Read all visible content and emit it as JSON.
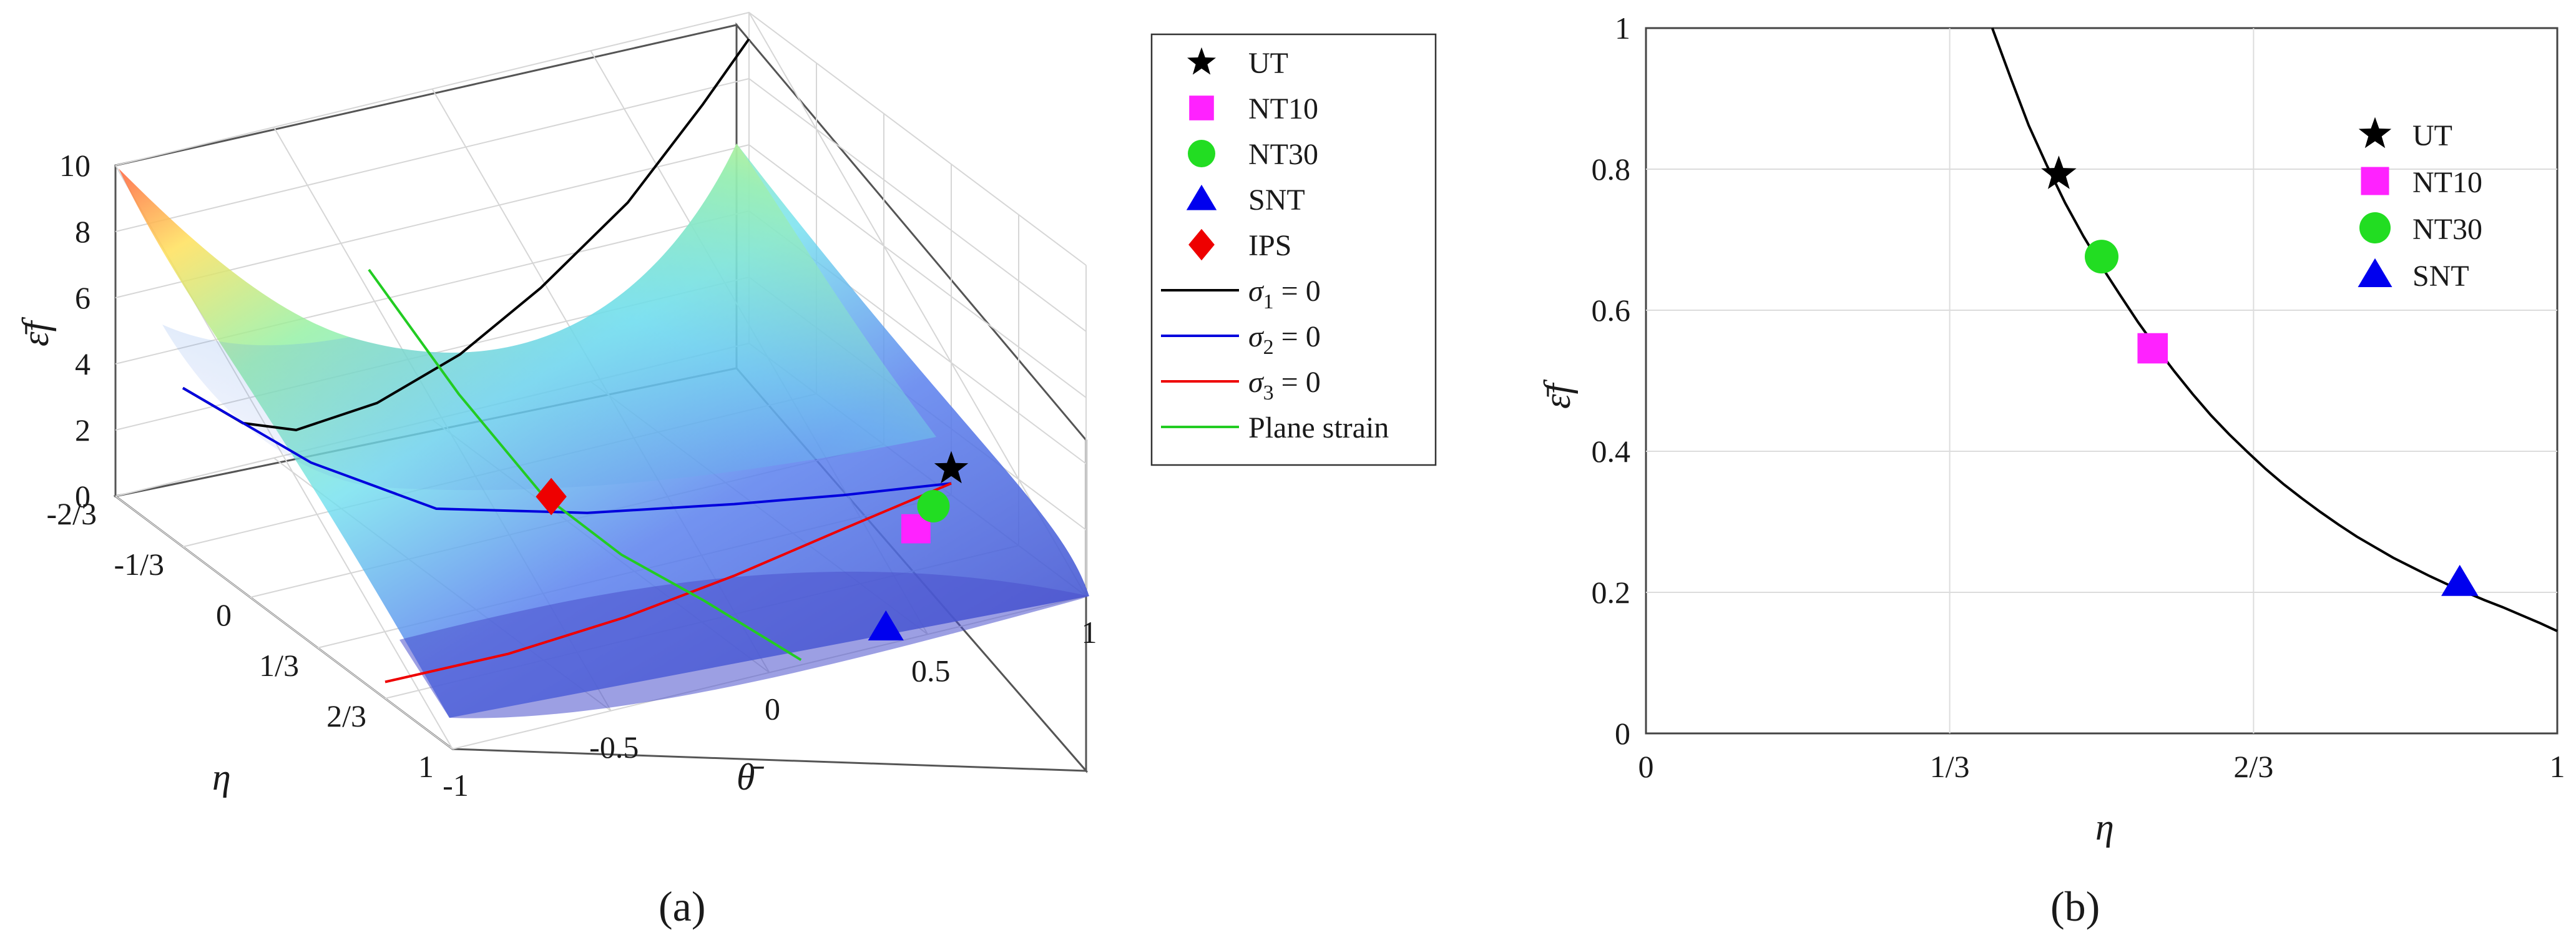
{
  "chart_data": [
    {
      "id": "a",
      "type": "surface3d",
      "panel_label": "(a)",
      "xlabel": "θ̄",
      "ylabel": "η",
      "zlabel": "ε̄f",
      "xlim": [
        -1,
        1
      ],
      "ylim": [
        -0.6667,
        1
      ],
      "zlim": [
        0,
        10
      ],
      "x_ticks": [
        -1,
        -0.5,
        0,
        0.5,
        1
      ],
      "x_tick_labels": [
        "-1",
        "-0.5",
        "0",
        "0.5",
        "1"
      ],
      "y_ticks": [
        -0.6667,
        -0.3333,
        0,
        0.3333,
        0.6667,
        1
      ],
      "y_tick_labels": [
        "-2/3",
        "-1/3",
        "0",
        "1/3",
        "2/3",
        "1"
      ],
      "z_ticks": [
        0,
        2,
        4,
        6,
        8,
        10
      ],
      "z_tick_labels": [
        "0",
        "2",
        "4",
        "6",
        "8",
        "10"
      ],
      "grid": true,
      "surface_note": "fracture strain surface, high near corners, low along diagonal",
      "lines": [
        {
          "name": "σ1 = 0",
          "color": "#000000",
          "points": [
            [
              -1,
              -0.3333,
              4.8
            ],
            [
              -0.8,
              -0.35,
              3.2
            ],
            [
              -0.6,
              -0.4,
              2.3
            ],
            [
              -0.3,
              -0.47,
              2.1
            ],
            [
              0,
              -0.53,
              2.6
            ],
            [
              0.3,
              -0.6,
              3.6
            ],
            [
              0.6,
              -0.64,
              5.3
            ],
            [
              0.85,
              -0.66,
              7.6
            ],
            [
              1,
              -0.6667,
              9.2
            ]
          ]
        },
        {
          "name": "σ2 = 0",
          "color": "#0000dd",
          "points": [
            [
              -1,
              -0.3333,
              4.8
            ],
            [
              -0.7,
              -0.17,
              2.6
            ],
            [
              -0.4,
              -0.02,
              1.2
            ],
            [
              0,
              0.1,
              0.7
            ],
            [
              0.4,
              0.2,
              0.5
            ],
            [
              0.7,
              0.27,
              0.4
            ],
            [
              1,
              0.3333,
              0.35
            ]
          ]
        },
        {
          "name": "σ3 = 0",
          "color": "#ee0000",
          "points": [
            [
              -1,
              0.6667,
              0.5
            ],
            [
              -0.6,
              0.65,
              0.35
            ],
            [
              -0.2,
              0.6,
              0.3
            ],
            [
              0.2,
              0.52,
              0.28
            ],
            [
              0.6,
              0.42,
              0.28
            ],
            [
              1,
              0.3333,
              0.35
            ]
          ]
        },
        {
          "name": "Plane strain",
          "color": "#22cc22",
          "points": [
            [
              -0.2,
              -0.6667,
              5.0
            ],
            [
              -0.15,
              -0.3,
              2.8
            ],
            [
              -0.08,
              0,
              1.0
            ],
            [
              -0.02,
              0.3,
              0.4
            ],
            [
              0.05,
              0.6,
              0.22
            ],
            [
              0.1,
              1,
              0.15
            ]
          ]
        }
      ],
      "markers": [
        {
          "name": "UT",
          "shape": "star",
          "color": "#000000",
          "x": 1,
          "y": 0.3333,
          "z": 0.79
        },
        {
          "name": "NT10",
          "shape": "square",
          "color": "#ff22ff",
          "x": 0.75,
          "y": 0.55,
          "z": 0.55
        },
        {
          "name": "NT30",
          "shape": "circle",
          "color": "#22dd22",
          "x": 0.85,
          "y": 0.48,
          "z": 0.68
        },
        {
          "name": "SNT",
          "shape": "triangle",
          "color": "#0000ee",
          "x": 0.4,
          "y": 0.95,
          "z": 0.21
        },
        {
          "name": "IPS",
          "shape": "diamond",
          "color": "#ee0000",
          "x": -0.05,
          "y": 0,
          "z": 0.85
        }
      ],
      "legend": {
        "placement": "outside-right",
        "entries": [
          {
            "label": "UT",
            "kind": "marker",
            "shape": "star",
            "color": "#000000"
          },
          {
            "label": "NT10",
            "kind": "marker",
            "shape": "square",
            "color": "#ff22ff"
          },
          {
            "label": "NT30",
            "kind": "marker",
            "shape": "circle",
            "color": "#22dd22"
          },
          {
            "label": "SNT",
            "kind": "marker",
            "shape": "triangle",
            "color": "#0000ee"
          },
          {
            "label": "IPS",
            "kind": "marker",
            "shape": "diamond",
            "color": "#ee0000"
          },
          {
            "label": "σ1 = 0",
            "sym": "σ",
            "sub": "1",
            "rest": " = 0",
            "kind": "line",
            "color": "#000000"
          },
          {
            "label": "σ2 = 0",
            "sym": "σ",
            "sub": "2",
            "rest": " = 0",
            "kind": "line",
            "color": "#0000dd"
          },
          {
            "label": "σ3 = 0",
            "sym": "σ",
            "sub": "3",
            "rest": " = 0",
            "kind": "line",
            "color": "#ee0000"
          },
          {
            "label": "Plane strain",
            "kind": "line",
            "color": "#22cc22"
          }
        ]
      }
    },
    {
      "id": "b",
      "type": "line",
      "panel_label": "(b)",
      "xlabel": "η",
      "ylabel": "ε̄f",
      "xlim": [
        0,
        1
      ],
      "ylim": [
        0,
        1
      ],
      "x_ticks": [
        0,
        0.3333,
        0.6667,
        1
      ],
      "x_tick_labels": [
        "0",
        "1/3",
        "2/3",
        "1"
      ],
      "y_ticks": [
        0,
        0.2,
        0.4,
        0.6,
        0.8,
        1
      ],
      "y_tick_labels": [
        "0",
        "0.2",
        "0.4",
        "0.6",
        "0.8",
        "1"
      ],
      "grid": true,
      "curve": {
        "color": "#000000",
        "x": [
          0.38,
          0.4,
          0.42,
          0.44,
          0.46,
          0.48,
          0.5,
          0.52,
          0.54,
          0.56,
          0.58,
          0.6,
          0.62,
          0.64,
          0.66,
          0.68,
          0.7,
          0.72,
          0.74,
          0.76,
          0.78,
          0.8,
          0.82,
          0.84,
          0.86,
          0.88,
          0.9,
          0.92,
          0.94,
          0.96,
          0.98,
          1.0
        ],
        "y": [
          1.0,
          0.93,
          0.862,
          0.805,
          0.752,
          0.705,
          0.662,
          0.622,
          0.583,
          0.547,
          0.513,
          0.481,
          0.451,
          0.424,
          0.399,
          0.375,
          0.353,
          0.333,
          0.314,
          0.296,
          0.279,
          0.264,
          0.249,
          0.236,
          0.223,
          0.211,
          0.2,
          0.189,
          0.179,
          0.168,
          0.157,
          0.145
        ]
      },
      "markers": [
        {
          "name": "UT",
          "shape": "star",
          "color": "#000000",
          "x": 0.453,
          "y": 0.793
        },
        {
          "name": "NT30",
          "shape": "circle",
          "color": "#22dd22",
          "x": 0.5,
          "y": 0.676
        },
        {
          "name": "NT10",
          "shape": "square",
          "color": "#ff22ff",
          "x": 0.556,
          "y": 0.546
        },
        {
          "name": "SNT",
          "shape": "triangle",
          "color": "#0000ee",
          "x": 0.893,
          "y": 0.214
        }
      ],
      "legend": {
        "placement": "top-right",
        "entries": [
          {
            "label": "UT",
            "shape": "star",
            "color": "#000000"
          },
          {
            "label": "NT10",
            "shape": "square",
            "color": "#ff22ff"
          },
          {
            "label": "NT30",
            "shape": "circle",
            "color": "#22dd22"
          },
          {
            "label": "SNT",
            "shape": "triangle",
            "color": "#0000ee"
          }
        ]
      }
    }
  ]
}
